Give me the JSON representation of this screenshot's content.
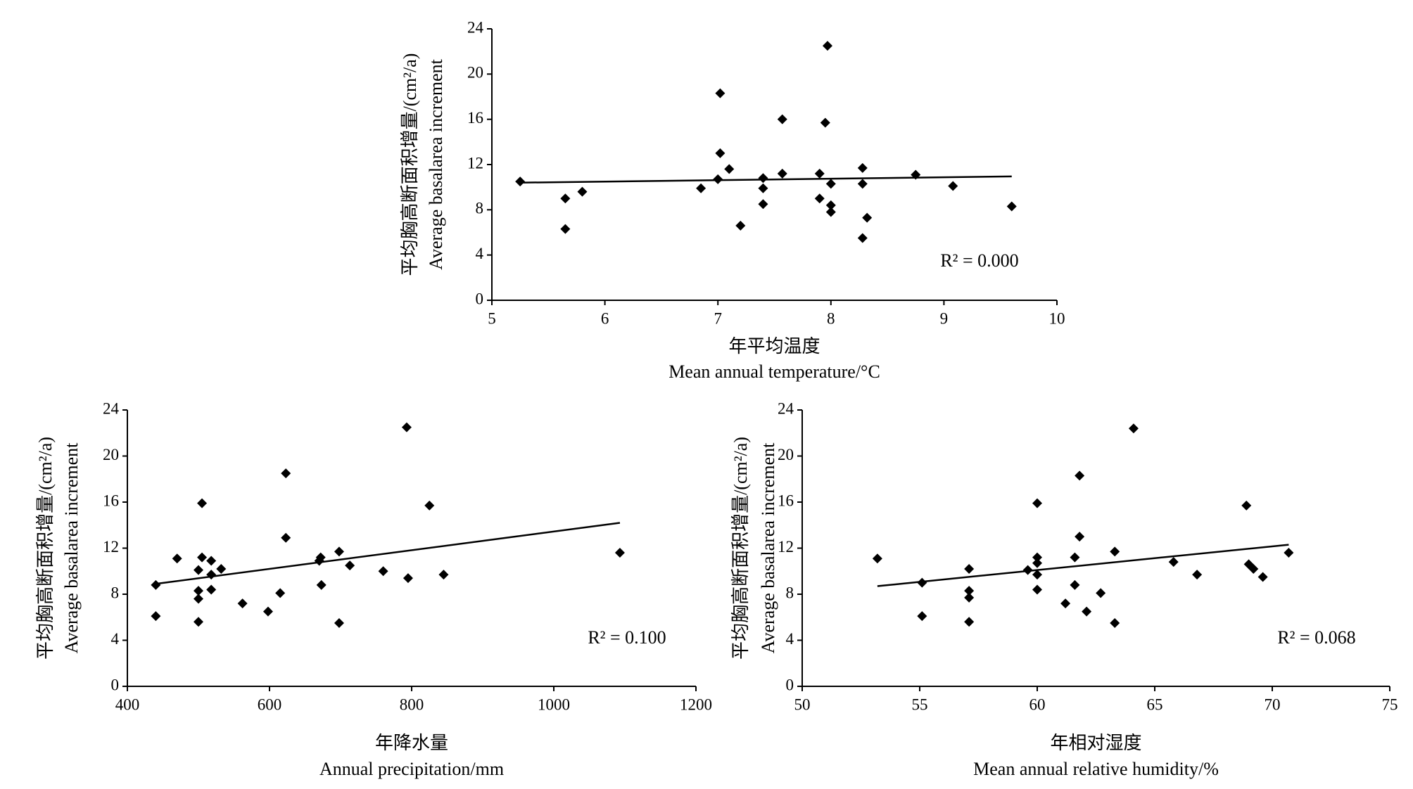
{
  "chart_data": [
    {
      "type": "scatter",
      "y_label": [
        "平均胸高断面积增量/(cm²/a)",
        "Average basalarea increment"
      ],
      "x_label": [
        "年平均温度",
        "Mean annual temperature/°C"
      ],
      "annotation": "R² = 0.000",
      "x": [
        5.25,
        5.65,
        5.65,
        5.8,
        6.85,
        7.0,
        7.02,
        7.02,
        7.1,
        7.2,
        7.4,
        7.4,
        7.4,
        7.57,
        7.57,
        7.9,
        7.9,
        7.95,
        7.97,
        8.0,
        8.0,
        8.0,
        8.28,
        8.28,
        8.28,
        8.32,
        8.75,
        9.08,
        9.6
      ],
      "values": [
        10.5,
        9.0,
        6.3,
        9.6,
        9.9,
        10.7,
        18.3,
        13.0,
        11.6,
        6.6,
        10.8,
        9.9,
        8.5,
        16.0,
        11.2,
        11.2,
        9.0,
        15.7,
        22.5,
        10.3,
        8.4,
        7.8,
        11.7,
        10.3,
        5.5,
        7.3,
        11.1,
        10.1,
        8.3
      ],
      "color": "#000000",
      "trendline": {
        "x": [
          5.25,
          9.6
        ],
        "y": [
          10.4,
          10.95
        ]
      },
      "xlim": [
        5,
        10
      ],
      "xticks": [
        5,
        6,
        7,
        8,
        9,
        10
      ],
      "ylim": [
        0,
        24
      ],
      "yticks": [
        0,
        4,
        8,
        12,
        16,
        20,
        24
      ]
    },
    {
      "type": "scatter",
      "y_label": [
        "平均胸高断面积增量/(cm²/a)",
        "Average basalarea increment"
      ],
      "x_label": [
        "年降水量",
        "Annual precipitation/mm"
      ],
      "annotation": "R² = 0.100",
      "x": [
        440,
        440,
        470,
        500,
        500,
        500,
        500,
        505,
        505,
        518,
        518,
        518,
        532,
        562,
        598,
        615,
        623,
        623,
        670,
        672,
        673,
        698,
        698,
        713,
        760,
        793,
        795,
        825,
        845,
        1093
      ],
      "values": [
        8.8,
        6.1,
        11.1,
        10.1,
        8.3,
        7.6,
        5.6,
        15.9,
        11.2,
        10.9,
        9.7,
        8.4,
        10.2,
        7.2,
        6.5,
        8.1,
        18.5,
        12.9,
        10.9,
        11.2,
        8.8,
        11.7,
        5.5,
        10.5,
        10.0,
        22.5,
        9.4,
        15.7,
        9.7,
        11.6
      ],
      "color": "#000000",
      "trendline": {
        "x": [
          440,
          1093
        ],
        "y": [
          8.9,
          14.2
        ]
      },
      "xlim": [
        400,
        1200
      ],
      "xticks": [
        400,
        600,
        800,
        1000,
        1200
      ],
      "ylim": [
        0,
        24
      ],
      "yticks": [
        0,
        4,
        8,
        12,
        16,
        20,
        24
      ]
    },
    {
      "type": "scatter",
      "y_label": [
        "平均胸高断面积增量/(cm²/a)",
        "Average basalarea increment"
      ],
      "x_label": [
        "年相对湿度",
        "Mean annual relative humidity/%"
      ],
      "annotation": "R² = 0.068",
      "x": [
        53.2,
        55.1,
        55.1,
        57.1,
        57.1,
        57.1,
        57.1,
        59.6,
        60,
        60,
        60,
        60,
        60,
        61.2,
        61.6,
        61.6,
        61.8,
        61.8,
        62.1,
        62.7,
        63.3,
        63.3,
        64.1,
        65.8,
        66.8,
        68.9,
        69,
        69.2,
        69.6,
        70.7
      ],
      "values": [
        11.1,
        9.0,
        6.1,
        10.2,
        8.3,
        7.7,
        5.6,
        10.1,
        15.9,
        11.2,
        10.7,
        9.7,
        8.4,
        7.2,
        11.2,
        8.8,
        18.3,
        13.0,
        6.5,
        8.1,
        11.7,
        5.5,
        22.4,
        10.8,
        9.7,
        15.7,
        10.6,
        10.2,
        9.5,
        11.6
      ],
      "color": "#000000",
      "trendline": {
        "x": [
          53.2,
          70.7
        ],
        "y": [
          8.7,
          12.3
        ]
      },
      "xlim": [
        50,
        75
      ],
      "xticks": [
        50,
        55,
        60,
        65,
        70,
        75
      ],
      "ylim": [
        0,
        24
      ],
      "yticks": [
        0,
        4,
        8,
        12,
        16,
        20,
        24
      ]
    }
  ]
}
